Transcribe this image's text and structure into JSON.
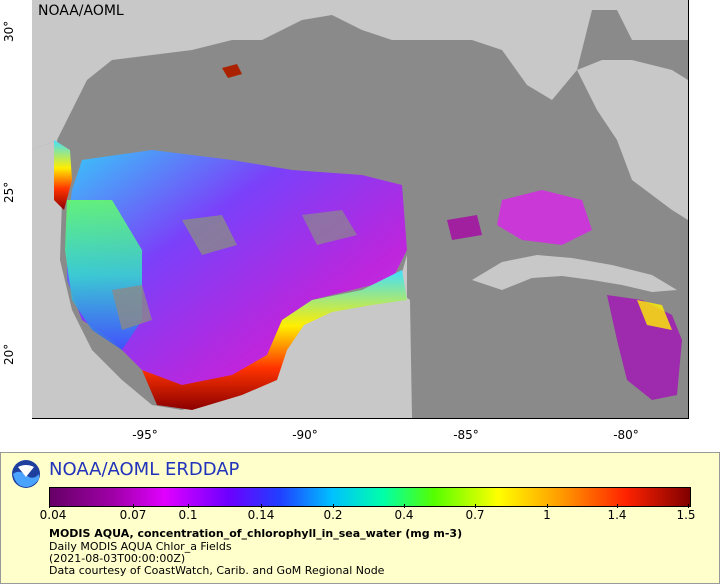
{
  "map": {
    "corner_label": "NOAA/AOML",
    "y_ticks": [
      "30°",
      "25°",
      "20°"
    ],
    "x_ticks": [
      "-95°",
      "-90°",
      "-85°",
      "-80°"
    ]
  },
  "legend": {
    "title": "NOAA/AOML ERDDAP",
    "colorbar_ticks": [
      "0.04",
      "0.07",
      "0.1",
      "0.14",
      "0.2",
      "0.4",
      "0.7",
      "1",
      "1.4",
      "1.5"
    ],
    "variable": "MODIS AQUA, concentration_of_chlorophyll_in_sea_water (mg m-3)",
    "dataset": "Daily MODIS AQUA Chlor_a Fields",
    "time": "(2021-08-03T00:00:00Z)",
    "credit": "Data courtesy of CoastWatch, Carib. and GoM Regional Node"
  },
  "colors": {
    "land": "#c8c8c8",
    "ocean_nodata": "#8a8a8a",
    "legend_bg": "#ffffcc",
    "title_color": "#2233bb"
  },
  "icons": [
    "noaa-logo-icon"
  ]
}
